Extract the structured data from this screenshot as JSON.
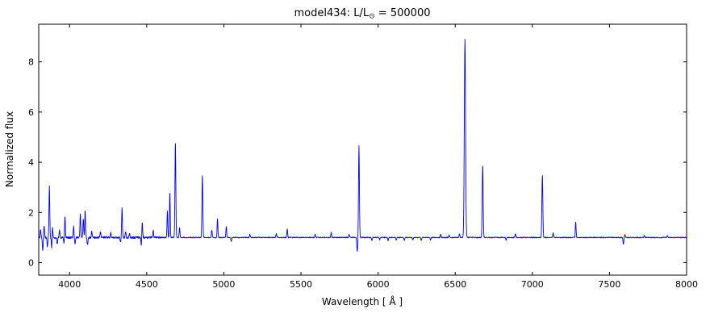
{
  "chart_data": {
    "type": "line",
    "title": "model434: L/L⊙ = 500000",
    "title_parts": {
      "prefix": "model434: L/L",
      "sub": "⊙",
      "suffix": " = 500000"
    },
    "xlabel": "Wavelength [ Å ]",
    "ylabel": "Normalized flux",
    "xlim": [
      3800,
      8000
    ],
    "ylim": [
      -0.5,
      9.5
    ],
    "xticks": [
      4000,
      4500,
      5000,
      5500,
      6000,
      6500,
      7000,
      7500,
      8000
    ],
    "yticks": [
      0,
      2,
      4,
      6,
      8
    ],
    "grid": false,
    "legend": null,
    "line_color": "#0000ff",
    "background": "#ffffff",
    "continuum_level": 1.0,
    "sample_step": 1.5,
    "noise_amplitude": 0.018,
    "features_note": "c = line center in Angstroms, h = peak flux relative to continuum (negative = absorption dip), w = gaussian sigma in Angstroms",
    "features": [
      {
        "c": 3812,
        "h": 0.3,
        "w": 2.5
      },
      {
        "c": 3826,
        "h": -0.55,
        "w": 2.5
      },
      {
        "c": 3835,
        "h": 0.45,
        "w": 2.5
      },
      {
        "c": 3856,
        "h": -0.35,
        "w": 2.5
      },
      {
        "c": 3869,
        "h": 2.05,
        "w": 2.5
      },
      {
        "c": 3884,
        "h": -0.45,
        "w": 2.5
      },
      {
        "c": 3889,
        "h": 0.45,
        "w": 2.5
      },
      {
        "c": 3920,
        "h": -0.25,
        "w": 2.5
      },
      {
        "c": 3935,
        "h": 0.3,
        "w": 2.5
      },
      {
        "c": 3964,
        "h": -0.3,
        "w": 2.5
      },
      {
        "c": 3970,
        "h": 0.85,
        "w": 2.5
      },
      {
        "c": 4026,
        "h": 0.45,
        "w": 2.5
      },
      {
        "c": 4035,
        "h": -0.25,
        "w": 2.5
      },
      {
        "c": 4070,
        "h": 0.95,
        "w": 2.5
      },
      {
        "c": 4089,
        "h": 0.75,
        "w": 2.5
      },
      {
        "c": 4101,
        "h": 1.1,
        "w": 2.5
      },
      {
        "c": 4116,
        "h": -0.3,
        "w": 2.5
      },
      {
        "c": 4144,
        "h": 0.25,
        "w": 2.5
      },
      {
        "c": 4200,
        "h": 0.22,
        "w": 2.5
      },
      {
        "c": 4267,
        "h": 0.18,
        "w": 2.5
      },
      {
        "c": 4330,
        "h": -0.2,
        "w": 2.5
      },
      {
        "c": 4340,
        "h": 1.15,
        "w": 2.5
      },
      {
        "c": 4363,
        "h": 0.25,
        "w": 2.5
      },
      {
        "c": 4388,
        "h": 0.15,
        "w": 2.5
      },
      {
        "c": 4465,
        "h": -0.35,
        "w": 2.5
      },
      {
        "c": 4471,
        "h": 0.6,
        "w": 2.5
      },
      {
        "c": 4542,
        "h": 0.28,
        "w": 2.5
      },
      {
        "c": 4634,
        "h": 1.05,
        "w": 2.5
      },
      {
        "c": 4650,
        "h": 1.8,
        "w": 2.5
      },
      {
        "c": 4686,
        "h": 3.8,
        "w": 2.8
      },
      {
        "c": 4713,
        "h": 0.4,
        "w": 2.5
      },
      {
        "c": 4861,
        "h": 2.5,
        "w": 2.8
      },
      {
        "c": 4922,
        "h": 0.3,
        "w": 2.5
      },
      {
        "c": 4959,
        "h": 0.75,
        "w": 2.5
      },
      {
        "c": 5016,
        "h": 0.45,
        "w": 2.5
      },
      {
        "c": 5048,
        "h": -0.15,
        "w": 2.5
      },
      {
        "c": 5169,
        "h": 0.12,
        "w": 2.5
      },
      {
        "c": 5340,
        "h": 0.15,
        "w": 2.5
      },
      {
        "c": 5411,
        "h": 0.35,
        "w": 2.5
      },
      {
        "c": 5592,
        "h": 0.12,
        "w": 2.5
      },
      {
        "c": 5696,
        "h": 0.2,
        "w": 2.5
      },
      {
        "c": 5812,
        "h": 0.12,
        "w": 2.5
      },
      {
        "c": 5865,
        "h": -0.55,
        "w": 3.0
      },
      {
        "c": 5876,
        "h": 3.65,
        "w": 2.8
      },
      {
        "c": 5960,
        "h": -0.12,
        "w": 2.5
      },
      {
        "c": 6010,
        "h": -0.1,
        "w": 2.5
      },
      {
        "c": 6065,
        "h": -0.12,
        "w": 2.5
      },
      {
        "c": 6118,
        "h": -0.1,
        "w": 2.5
      },
      {
        "c": 6170,
        "h": -0.12,
        "w": 2.5
      },
      {
        "c": 6225,
        "h": -0.1,
        "w": 2.5
      },
      {
        "c": 6280,
        "h": -0.12,
        "w": 2.5
      },
      {
        "c": 6340,
        "h": -0.1,
        "w": 2.5
      },
      {
        "c": 6406,
        "h": 0.12,
        "w": 2.5
      },
      {
        "c": 6460,
        "h": 0.1,
        "w": 2.5
      },
      {
        "c": 6527,
        "h": 0.15,
        "w": 2.5
      },
      {
        "c": 6563,
        "h": 7.9,
        "w": 4.0
      },
      {
        "c": 6678,
        "h": 2.9,
        "w": 3.0
      },
      {
        "c": 6830,
        "h": -0.1,
        "w": 2.5
      },
      {
        "c": 6890,
        "h": 0.15,
        "w": 2.5
      },
      {
        "c": 7065,
        "h": 2.5,
        "w": 3.0
      },
      {
        "c": 7135,
        "h": 0.18,
        "w": 2.5
      },
      {
        "c": 7281,
        "h": 0.62,
        "w": 2.5
      },
      {
        "c": 7590,
        "h": -0.28,
        "w": 2.5
      },
      {
        "c": 7600,
        "h": 0.12,
        "w": 2.5
      },
      {
        "c": 7726,
        "h": 0.1,
        "w": 2.5
      },
      {
        "c": 7875,
        "h": 0.08,
        "w": 2.5
      }
    ]
  }
}
